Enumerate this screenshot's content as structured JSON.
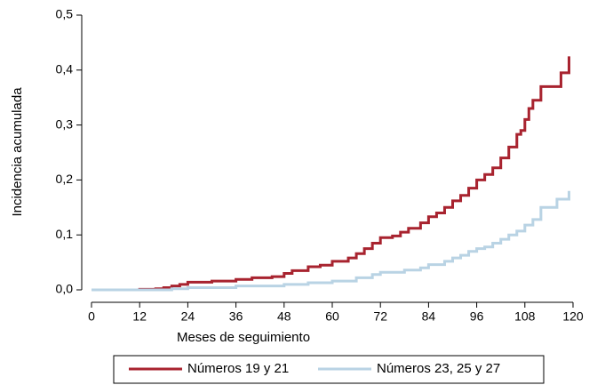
{
  "chart_data": {
    "type": "line",
    "drawstyle": "steps-post",
    "x_label": "Meses de seguimiento",
    "y_label": "Incidencia acumulada",
    "xlim": [
      0,
      120
    ],
    "xticks": [
      0,
      12,
      24,
      36,
      48,
      60,
      72,
      84,
      96,
      108,
      120
    ],
    "ylim": [
      0,
      0.5
    ],
    "yticks": [
      {
        "value": 0,
        "label": "0,0"
      },
      {
        "value": 0.1,
        "label": "0,1"
      },
      {
        "value": 0.2,
        "label": "0,2"
      },
      {
        "value": 0.3,
        "label": "0,3"
      },
      {
        "value": 0.4,
        "label": "0,4"
      },
      {
        "value": 0.5,
        "label": "0,5"
      }
    ],
    "grid": false,
    "legend": "bottom",
    "series": [
      {
        "name": "Números 19 y 21",
        "color": "#a8232f",
        "x": [
          0,
          12,
          16,
          18,
          20,
          22,
          24,
          30,
          36,
          40,
          45,
          48,
          50,
          54,
          57,
          60,
          64,
          66,
          68,
          70,
          72,
          75,
          77,
          79,
          82,
          84,
          86,
          88,
          90,
          92,
          94,
          96,
          98,
          100,
          102,
          104,
          106,
          107,
          108,
          109,
          110,
          112,
          117,
          119
        ],
        "values": [
          0,
          0.001,
          0.002,
          0.004,
          0.007,
          0.01,
          0.014,
          0.016,
          0.019,
          0.022,
          0.024,
          0.03,
          0.035,
          0.042,
          0.045,
          0.052,
          0.058,
          0.066,
          0.075,
          0.085,
          0.095,
          0.098,
          0.105,
          0.112,
          0.122,
          0.133,
          0.14,
          0.15,
          0.162,
          0.172,
          0.185,
          0.2,
          0.21,
          0.222,
          0.24,
          0.26,
          0.283,
          0.29,
          0.31,
          0.33,
          0.345,
          0.37,
          0.395,
          0.425
        ]
      },
      {
        "name": "Números 23, 25 y 27",
        "color": "#b9d3e4",
        "x": [
          0,
          20,
          24,
          36,
          48,
          54,
          60,
          66,
          70,
          72,
          78,
          82,
          84,
          88,
          90,
          92,
          94,
          96,
          98,
          100,
          102,
          104,
          106,
          108,
          110,
          112,
          116,
          119
        ],
        "values": [
          0,
          0.002,
          0.004,
          0.007,
          0.01,
          0.013,
          0.016,
          0.022,
          0.028,
          0.032,
          0.036,
          0.04,
          0.046,
          0.052,
          0.058,
          0.063,
          0.07,
          0.075,
          0.078,
          0.085,
          0.092,
          0.1,
          0.107,
          0.118,
          0.128,
          0.15,
          0.165,
          0.18
        ]
      }
    ]
  }
}
